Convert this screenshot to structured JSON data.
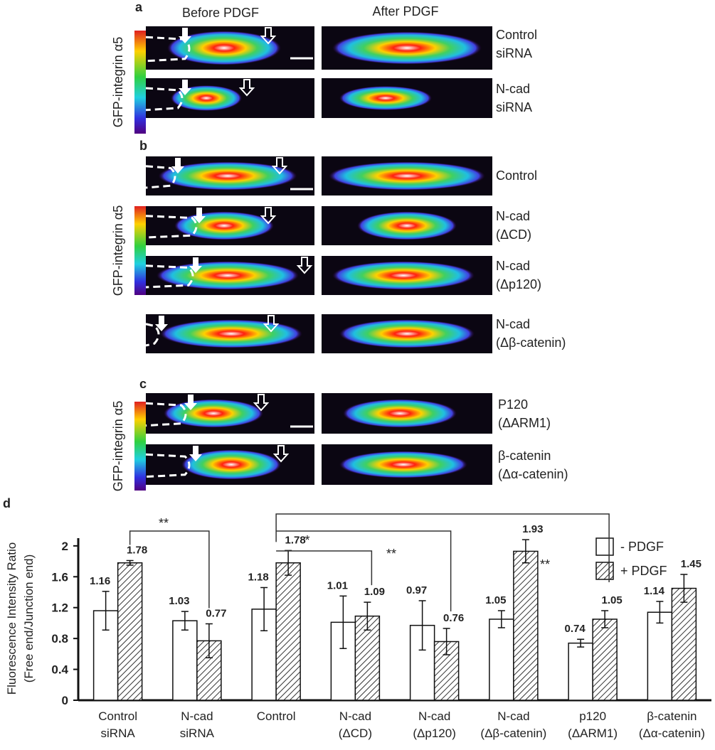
{
  "panels": {
    "a": {
      "label": "a",
      "before": "Before PDGF",
      "after": "After PDGF",
      "colorbar_label": "GFP-integrin α5",
      "rows": [
        [
          "Control",
          "siRNA"
        ],
        [
          "N-cad",
          "siRNA"
        ]
      ]
    },
    "b": {
      "label": "b",
      "colorbar_label": "GFP-integrin α5",
      "rows": [
        [
          "Control"
        ],
        [
          "N-cad",
          "(ΔCD)"
        ],
        [
          "N-cad",
          "(Δp120)"
        ],
        [
          "N-cad",
          "(Δβ-catenin)"
        ]
      ]
    },
    "c": {
      "label": "c",
      "colorbar_label": "GFP-integrin α5",
      "rows": [
        [
          "P120",
          "(ΔARM1)"
        ],
        [
          "β-catenin",
          "(Δα-catenin)"
        ]
      ]
    }
  },
  "chart_data": {
    "type": "bar",
    "panel_label": "d",
    "ylabel": [
      "Fluorescence Intensity Ratio",
      "(Free end/Junction end)"
    ],
    "categories": [
      "Control siRNA",
      "N-cad siRNA",
      "Control",
      "N-cad (ΔCD)",
      "N-cad (Δp120)",
      "N-cad (Δβ-catenin)",
      "p120 (ΔARM1)",
      "β-catenin (Δα-catenin)"
    ],
    "series": [
      {
        "name": "- PDGF",
        "color": "#ffffff",
        "values": [
          1.16,
          1.03,
          1.18,
          1.01,
          0.97,
          1.05,
          0.74,
          1.14
        ],
        "errors": [
          0.25,
          0.12,
          0.28,
          0.34,
          0.32,
          0.11,
          0.05,
          0.14
        ]
      },
      {
        "name": "+ PDGF",
        "color": "#333333",
        "hatch": true,
        "values": [
          1.78,
          0.77,
          1.78,
          1.09,
          0.76,
          1.93,
          1.05,
          1.45
        ],
        "errors": [
          0.03,
          0.22,
          0.16,
          0.18,
          0.17,
          0.15,
          0.11,
          0.18
        ]
      }
    ],
    "ylim": [
      0,
      2.1
    ],
    "yticks": [
      0,
      0.4,
      0.8,
      1.2,
      1.6,
      2
    ],
    "legend": "top-right",
    "annotations": [
      "**",
      "*",
      "**",
      "**"
    ]
  }
}
